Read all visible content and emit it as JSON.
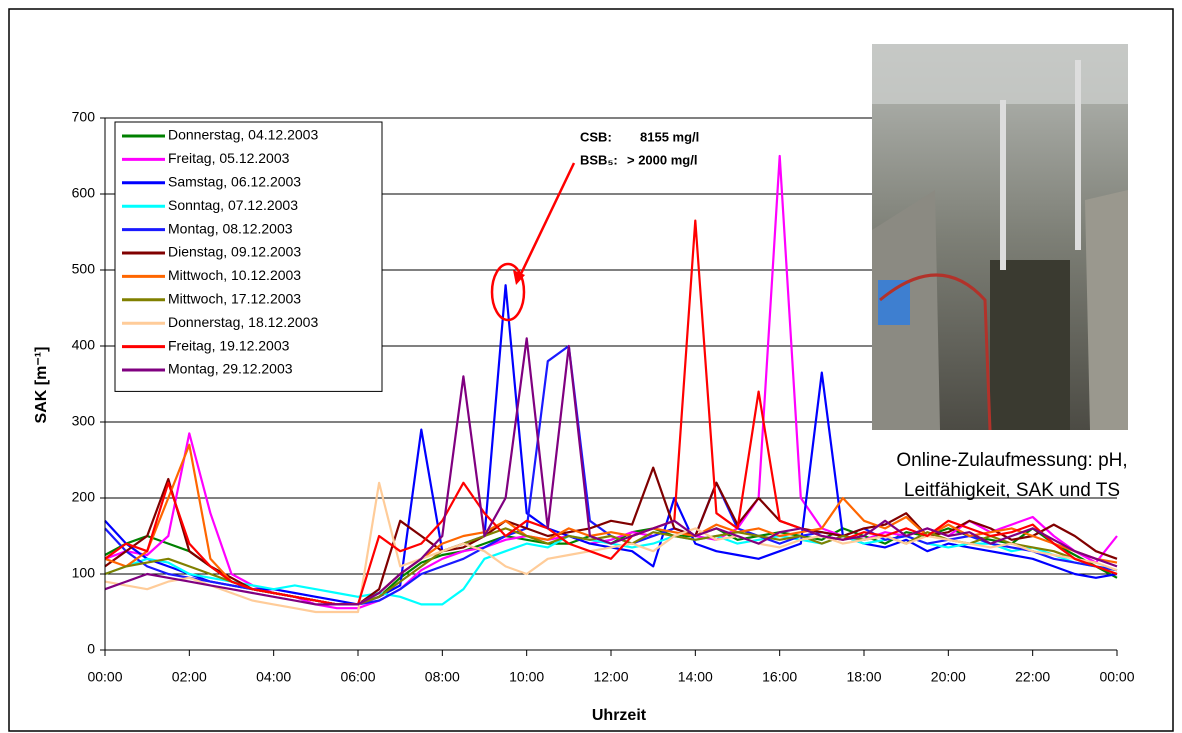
{
  "chart_data": {
    "type": "line",
    "x_label": "Uhrzeit",
    "y_label": "SAK [m⁻¹]",
    "xlim": [
      0,
      24
    ],
    "ylim": [
      0,
      700
    ],
    "xticks": [
      {
        "value": 0,
        "label": "00:00"
      },
      {
        "value": 2,
        "label": "02:00"
      },
      {
        "value": 4,
        "label": "04:00"
      },
      {
        "value": 6,
        "label": "06:00"
      },
      {
        "value": 8,
        "label": "08:00"
      },
      {
        "value": 10,
        "label": "10:00"
      },
      {
        "value": 12,
        "label": "12:00"
      },
      {
        "value": 14,
        "label": "14:00"
      },
      {
        "value": 16,
        "label": "16:00"
      },
      {
        "value": 18,
        "label": "18:00"
      },
      {
        "value": 20,
        "label": "20:00"
      },
      {
        "value": 22,
        "label": "22:00"
      },
      {
        "value": 24,
        "label": "00:00"
      }
    ],
    "yticks": [
      0,
      100,
      200,
      300,
      400,
      500,
      600,
      700
    ],
    "grid": true,
    "legend_position": "upper left",
    "annotation": [
      {
        "label": "CSB:",
        "value": "8155 mg/l"
      },
      {
        "label": "BSB₅:",
        "value": "> 2000 mg/l"
      }
    ],
    "photo_caption": [
      "Online-Zulaufmessung: pH,",
      "Leitfähigkeit, SAK und TS"
    ],
    "x": [
      0,
      0.5,
      1,
      1.5,
      2,
      2.5,
      3,
      3.5,
      4,
      4.5,
      5,
      5.5,
      6,
      6.5,
      7,
      7.5,
      8,
      8.5,
      9,
      9.5,
      10,
      10.5,
      11,
      11.5,
      12,
      12.5,
      13,
      13.5,
      14,
      14.5,
      15,
      15.5,
      16,
      16.5,
      17,
      17.5,
      18,
      18.5,
      19,
      19.5,
      20,
      20.5,
      21,
      21.5,
      22,
      22.5,
      23,
      23.5,
      24
    ],
    "series": [
      {
        "name": "Donnerstag, 04.12.2003",
        "color": "#008000",
        "values": [
          125,
          140,
          150,
          140,
          130,
          110,
          90,
          80,
          75,
          70,
          65,
          60,
          60,
          70,
          95,
          115,
          125,
          130,
          140,
          150,
          145,
          140,
          140,
          150,
          140,
          155,
          160,
          150,
          150,
          160,
          145,
          150,
          155,
          150,
          145,
          160,
          150,
          140,
          155,
          150,
          160,
          150,
          145,
          140,
          160,
          140,
          125,
          110,
          95
        ]
      },
      {
        "name": "Freitag, 05.12.2003",
        "color": "#ff00ff",
        "values": [
          120,
          130,
          125,
          150,
          285,
          180,
          100,
          85,
          75,
          70,
          60,
          55,
          55,
          65,
          80,
          105,
          120,
          130,
          135,
          145,
          150,
          145,
          150,
          140,
          145,
          155,
          150,
          160,
          150,
          145,
          160,
          200,
          650,
          200,
          160,
          150,
          145,
          155,
          150,
          160,
          150,
          170,
          155,
          165,
          175,
          150,
          130,
          115,
          150
        ]
      },
      {
        "name": "Samstag, 06.12.2003",
        "color": "#0000ff",
        "values": [
          170,
          140,
          120,
          110,
          100,
          90,
          85,
          80,
          80,
          75,
          70,
          65,
          60,
          70,
          85,
          290,
          130,
          140,
          150,
          480,
          180,
          160,
          150,
          140,
          135,
          130,
          110,
          200,
          140,
          130,
          125,
          120,
          130,
          140,
          365,
          150,
          140,
          135,
          145,
          130,
          140,
          135,
          130,
          125,
          120,
          110,
          100,
          95,
          100
        ]
      },
      {
        "name": "Sonntag, 07.12.2003",
        "color": "#00ffff",
        "values": [
          100,
          110,
          120,
          115,
          100,
          95,
          90,
          85,
          80,
          85,
          80,
          75,
          70,
          75,
          70,
          60,
          60,
          80,
          120,
          130,
          140,
          135,
          150,
          145,
          140,
          135,
          140,
          150,
          145,
          150,
          140,
          145,
          150,
          145,
          140,
          150,
          140,
          145,
          150,
          140,
          135,
          140,
          140,
          130,
          135,
          125,
          115,
          110,
          105
        ]
      },
      {
        "name": "Montag, 08.12.2003",
        "color": "#1a1aff",
        "values": [
          160,
          130,
          110,
          100,
          95,
          90,
          85,
          80,
          75,
          70,
          65,
          60,
          60,
          65,
          80,
          100,
          110,
          120,
          135,
          150,
          160,
          380,
          400,
          170,
          150,
          140,
          150,
          160,
          150,
          220,
          160,
          150,
          140,
          150,
          155,
          150,
          160,
          145,
          150,
          140,
          145,
          150,
          140,
          135,
          130,
          120,
          115,
          110,
          105
        ]
      },
      {
        "name": "Dienstag, 09.12.2003",
        "color": "#800000",
        "values": [
          110,
          130,
          150,
          225,
          130,
          110,
          95,
          80,
          75,
          70,
          65,
          60,
          60,
          80,
          170,
          150,
          130,
          135,
          150,
          170,
          160,
          150,
          155,
          160,
          170,
          165,
          240,
          160,
          150,
          220,
          165,
          200,
          170,
          160,
          155,
          150,
          160,
          165,
          180,
          150,
          155,
          170,
          160,
          145,
          150,
          165,
          150,
          130,
          120
        ]
      },
      {
        "name": "Mittwoch, 10.12.2003",
        "color": "#ff6600",
        "values": [
          120,
          110,
          130,
          200,
          270,
          120,
          90,
          80,
          75,
          70,
          65,
          60,
          60,
          75,
          100,
          120,
          140,
          150,
          155,
          170,
          150,
          145,
          160,
          150,
          155,
          150,
          160,
          155,
          150,
          165,
          155,
          160,
          150,
          155,
          160,
          200,
          170,
          160,
          175,
          150,
          165,
          150,
          155,
          160,
          150,
          140,
          130,
          120,
          115
        ]
      },
      {
        "name": "Mittwoch, 17.12.2003",
        "color": "#808000",
        "values": [
          100,
          110,
          115,
          120,
          110,
          100,
          90,
          80,
          75,
          70,
          65,
          60,
          60,
          70,
          90,
          110,
          130,
          140,
          150,
          160,
          150,
          140,
          150,
          145,
          150,
          140,
          155,
          150,
          145,
          150,
          155,
          150,
          145,
          150,
          140,
          150,
          145,
          150,
          140,
          155,
          145,
          140,
          150,
          140,
          135,
          130,
          120,
          110,
          100
        ]
      },
      {
        "name": "Donnerstag, 18.12.2003",
        "color": "#ffcc99",
        "values": [
          90,
          85,
          80,
          90,
          95,
          85,
          75,
          65,
          60,
          55,
          50,
          50,
          50,
          220,
          110,
          120,
          130,
          140,
          130,
          110,
          100,
          120,
          125,
          130,
          135,
          140,
          130,
          150,
          160,
          145,
          150,
          140,
          135,
          145,
          150,
          140,
          145,
          150,
          140,
          150,
          145,
          140,
          135,
          140,
          130,
          125,
          120,
          115,
          105
        ]
      },
      {
        "name": "Freitag, 19.12.2003",
        "color": "#ff0000",
        "values": [
          120,
          140,
          130,
          220,
          140,
          110,
          90,
          80,
          75,
          70,
          65,
          60,
          60,
          150,
          130,
          140,
          170,
          220,
          180,
          150,
          170,
          160,
          140,
          130,
          120,
          150,
          160,
          170,
          565,
          180,
          160,
          340,
          170,
          160,
          150,
          145,
          155,
          150,
          160,
          150,
          170,
          160,
          150,
          155,
          165,
          140,
          120,
          110,
          100
        ]
      },
      {
        "name": "Montag, 29.12.2003",
        "color": "#800080",
        "values": [
          80,
          90,
          100,
          95,
          90,
          85,
          80,
          75,
          70,
          65,
          60,
          60,
          60,
          75,
          100,
          120,
          150,
          360,
          150,
          200,
          410,
          160,
          400,
          150,
          140,
          150,
          160,
          170,
          150,
          160,
          150,
          140,
          155,
          160,
          150,
          145,
          150,
          170,
          150,
          160,
          150,
          155,
          140,
          150,
          160,
          145,
          130,
          120,
          110
        ]
      }
    ]
  }
}
